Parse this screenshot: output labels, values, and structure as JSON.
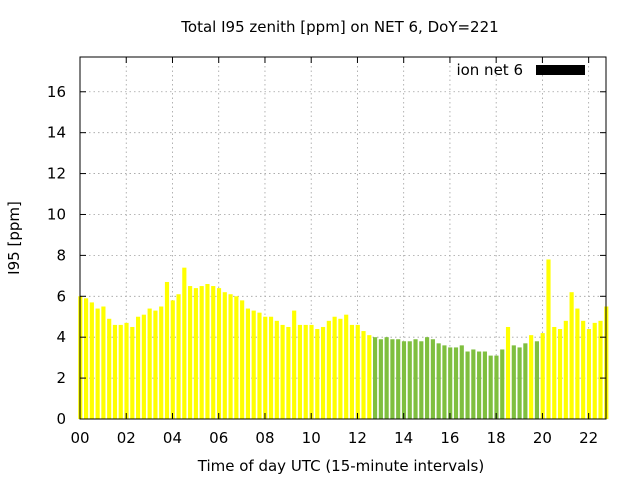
{
  "chart_data": {
    "type": "bar",
    "title": "Total I95 zenith [ppm] on NET 6, DoY=221",
    "xlabel": "Time of day UTC (15-minute intervals)",
    "ylabel": "I95 [ppm]",
    "xlim": [
      0,
      22.75
    ],
    "ylim": [
      0,
      17.7
    ],
    "x_ticks": [
      "00",
      "02",
      "04",
      "06",
      "08",
      "10",
      "12",
      "14",
      "16",
      "18",
      "20",
      "22"
    ],
    "y_ticks": [
      "0",
      "2",
      "4",
      "6",
      "8",
      "10",
      "12",
      "14",
      "16"
    ],
    "grid": true,
    "legend": {
      "label": "ion net 6",
      "position": "top-right",
      "color": "#000000"
    },
    "colors": {
      "high": "#ffff00",
      "low": "#7fbf3f"
    },
    "interval_hours": 0.25,
    "values": [
      6.0,
      5.9,
      5.7,
      5.4,
      5.5,
      4.9,
      4.6,
      4.6,
      4.7,
      4.5,
      5.0,
      5.1,
      5.4,
      5.3,
      5.5,
      6.7,
      5.8,
      6.1,
      7.4,
      6.5,
      6.4,
      6.5,
      6.6,
      6.5,
      6.4,
      6.2,
      6.1,
      6.0,
      5.8,
      5.4,
      5.3,
      5.2,
      5.0,
      5.0,
      4.8,
      4.6,
      4.5,
      5.3,
      4.6,
      4.6,
      4.6,
      4.4,
      4.5,
      4.8,
      5.0,
      4.9,
      5.1,
      4.6,
      4.6,
      4.3,
      4.1,
      4.0,
      3.9,
      4.0,
      3.9,
      3.9,
      3.8,
      3.8,
      3.9,
      3.8,
      4.0,
      3.9,
      3.7,
      3.6,
      3.5,
      3.5,
      3.6,
      3.3,
      3.4,
      3.3,
      3.3,
      3.1,
      3.1,
      3.4,
      4.5,
      3.6,
      3.5,
      3.7,
      4.1,
      3.8,
      4.2,
      7.8,
      4.5,
      4.4,
      4.8,
      6.2,
      5.4,
      4.8,
      4.4,
      4.7,
      4.8,
      5.5
    ],
    "series_color_index": [
      "high",
      "high",
      "high",
      "high",
      "high",
      "high",
      "high",
      "high",
      "high",
      "high",
      "high",
      "high",
      "high",
      "high",
      "high",
      "high",
      "high",
      "high",
      "high",
      "high",
      "high",
      "high",
      "high",
      "high",
      "high",
      "high",
      "high",
      "high",
      "high",
      "high",
      "high",
      "high",
      "high",
      "high",
      "high",
      "high",
      "high",
      "high",
      "high",
      "high",
      "high",
      "high",
      "high",
      "high",
      "high",
      "high",
      "high",
      "high",
      "high",
      "high",
      "high",
      "low",
      "low",
      "low",
      "low",
      "low",
      "low",
      "low",
      "low",
      "low",
      "low",
      "low",
      "low",
      "low",
      "low",
      "low",
      "low",
      "low",
      "low",
      "low",
      "low",
      "low",
      "low",
      "low",
      "high",
      "low",
      "low",
      "low",
      "high",
      "low",
      "high",
      "high",
      "high",
      "high",
      "high",
      "high",
      "high",
      "high",
      "high",
      "high",
      "high",
      "high"
    ]
  }
}
